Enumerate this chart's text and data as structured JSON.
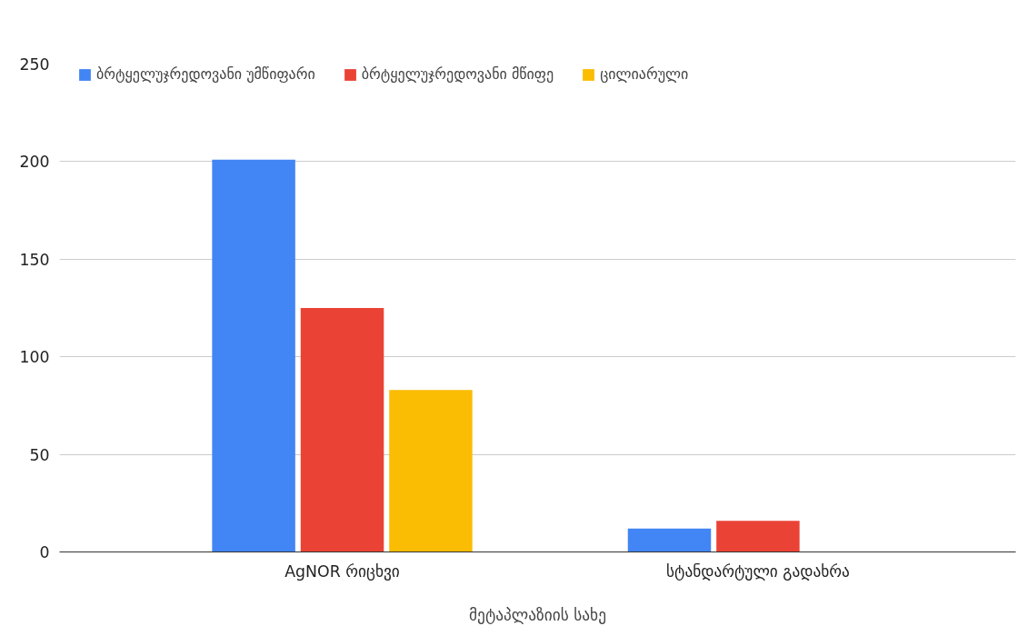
{
  "chart_data": {
    "type": "bar",
    "xlabel": "მეტაპლაზიის სახე",
    "categories": [
      "AgNOR რიცხვი",
      "სტანდარტული გადახრა"
    ],
    "series": [
      {
        "name": "ბრტყელუჯრედოვანი უმწიფარი",
        "color": "#4285f4",
        "values": [
          201,
          12
        ]
      },
      {
        "name": "ბრტყელუჯრედოვანი მწიფე",
        "color": "#ea4335",
        "values": [
          125,
          16
        ]
      },
      {
        "name": "ცილიარული",
        "color": "#fbbc04",
        "values": [
          83,
          null
        ]
      }
    ],
    "ylim": [
      0,
      250
    ],
    "yticks": [
      0,
      50,
      100,
      150,
      200,
      250
    ],
    "grid": "y",
    "legend": "top"
  }
}
